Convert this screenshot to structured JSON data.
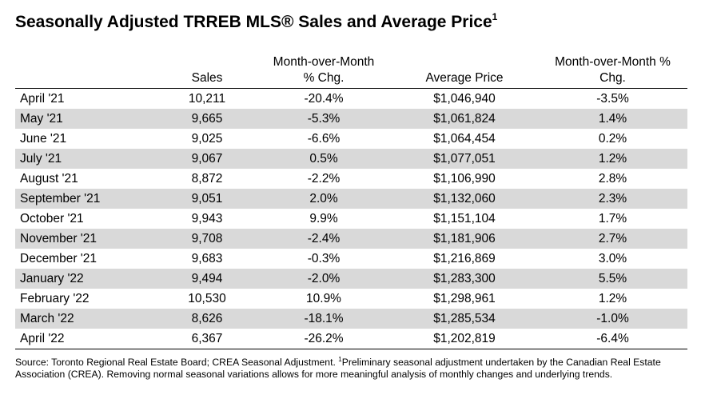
{
  "title": {
    "text": "Seasonally Adjusted TRREB MLS® Sales and Average Price",
    "superscript": "1"
  },
  "table": {
    "headers": {
      "month": "",
      "sales": "Sales",
      "sales_mom_line1": "Month-over-Month",
      "sales_mom_line2": "% Chg.",
      "avg_price": "Average Price",
      "price_mom_line1": "Month-over-Month %",
      "price_mom_line2": "Chg."
    },
    "rows": [
      {
        "month": "April '21",
        "sales": "10,211",
        "sales_chg": "-20.4%",
        "avg_price": "$1,046,940",
        "price_chg": "-3.5%"
      },
      {
        "month": "May '21",
        "sales": "9,665",
        "sales_chg": "-5.3%",
        "avg_price": "$1,061,824",
        "price_chg": "1.4%"
      },
      {
        "month": "June '21",
        "sales": "9,025",
        "sales_chg": "-6.6%",
        "avg_price": "$1,064,454",
        "price_chg": "0.2%"
      },
      {
        "month": "July '21",
        "sales": "9,067",
        "sales_chg": "0.5%",
        "avg_price": "$1,077,051",
        "price_chg": "1.2%"
      },
      {
        "month": "August '21",
        "sales": "8,872",
        "sales_chg": "-2.2%",
        "avg_price": "$1,106,990",
        "price_chg": "2.8%"
      },
      {
        "month": "September '21",
        "sales": "9,051",
        "sales_chg": "2.0%",
        "avg_price": "$1,132,060",
        "price_chg": "2.3%"
      },
      {
        "month": "October '21",
        "sales": "9,943",
        "sales_chg": "9.9%",
        "avg_price": "$1,151,104",
        "price_chg": "1.7%"
      },
      {
        "month": "November '21",
        "sales": "9,708",
        "sales_chg": "-2.4%",
        "avg_price": "$1,181,906",
        "price_chg": "2.7%"
      },
      {
        "month": "December '21",
        "sales": "9,683",
        "sales_chg": "-0.3%",
        "avg_price": "$1,216,869",
        "price_chg": "3.0%"
      },
      {
        "month": "January '22",
        "sales": "9,494",
        "sales_chg": "-2.0%",
        "avg_price": "$1,283,300",
        "price_chg": "5.5%"
      },
      {
        "month": "February '22",
        "sales": "10,530",
        "sales_chg": "10.9%",
        "avg_price": "$1,298,961",
        "price_chg": "1.2%"
      },
      {
        "month": "March '22",
        "sales": "8,626",
        "sales_chg": "-18.1%",
        "avg_price": "$1,285,534",
        "price_chg": "-1.0%"
      },
      {
        "month": "April '22",
        "sales": "6,367",
        "sales_chg": "-26.2%",
        "avg_price": "$1,202,819",
        "price_chg": "-6.4%"
      }
    ]
  },
  "source": {
    "text_part1": "Source: Toronto Regional Real Estate Board; CREA Seasonal Adjustment. ",
    "superscript": "1",
    "text_part2": "Preliminary seasonal adjustment undertaken by the Canadian Real Estate Association (CREA).  Removing normal seasonal variations allows for more meaningful analysis of monthly changes and underlying trends."
  },
  "colors": {
    "row_shade": "#d9d9d9",
    "text": "#000000"
  }
}
